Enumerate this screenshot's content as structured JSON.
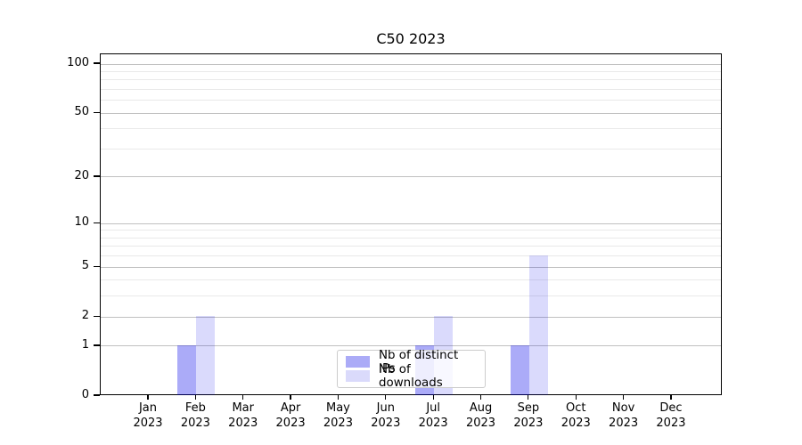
{
  "title": "C50 2023",
  "chart_data": {
    "type": "bar",
    "title": "C50 2023",
    "categories": [
      {
        "month": "Jan",
        "year": "2023"
      },
      {
        "month": "Feb",
        "year": "2023"
      },
      {
        "month": "Mar",
        "year": "2023"
      },
      {
        "month": "Apr",
        "year": "2023"
      },
      {
        "month": "May",
        "year": "2023"
      },
      {
        "month": "Jun",
        "year": "2023"
      },
      {
        "month": "Jul",
        "year": "2023"
      },
      {
        "month": "Aug",
        "year": "2023"
      },
      {
        "month": "Sep",
        "year": "2023"
      },
      {
        "month": "Oct",
        "year": "2023"
      },
      {
        "month": "Nov",
        "year": "2023"
      },
      {
        "month": "Dec",
        "year": "2023"
      }
    ],
    "series": [
      {
        "name": "Nb of distinct IPs",
        "color_hex": "#ababf7",
        "color_fill": "rgba(0,0,235,0.33)",
        "values": [
          0,
          1,
          0,
          0,
          0,
          0,
          1,
          0,
          1,
          0,
          0,
          0
        ]
      },
      {
        "name": "Nb of downloads",
        "color_hex": "#dadafb",
        "color_fill": "rgba(0,0,235,0.145)",
        "values": [
          0,
          2,
          0,
          0,
          0,
          0,
          2,
          0,
          6,
          0,
          0,
          0
        ]
      }
    ],
    "yscale": "log1p",
    "ylim": [
      0,
      115
    ],
    "ytick_values": [
      0,
      1,
      2,
      5,
      10,
      20,
      50,
      100
    ],
    "ytick_labels": [
      "0",
      "1",
      "2",
      "5",
      "10",
      "20",
      "50",
      "100"
    ],
    "minor_gridline_values": [
      3,
      4,
      6,
      7,
      8,
      9,
      30,
      40,
      60,
      70,
      80,
      90
    ],
    "grid": "on",
    "legend_position": "lower center"
  },
  "colors": {
    "background": "#ffffff",
    "axis": "#000000",
    "major_grid": "#c0c0c0",
    "minor_grid": "#e9e9e9",
    "legend_border": "#cccccc"
  }
}
